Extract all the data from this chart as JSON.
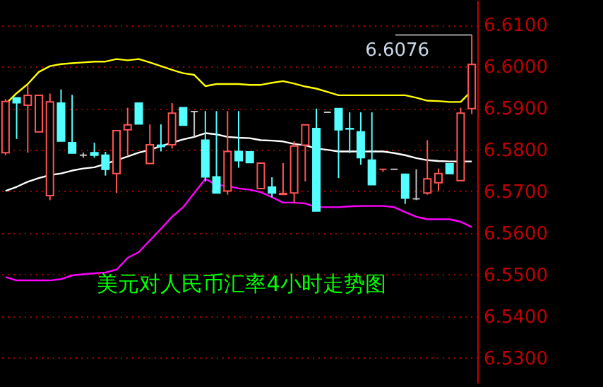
{
  "chart_data": {
    "type": "candlestick",
    "title": "美元对人民币汇率4小时走势图",
    "categories": [
      null,
      null,
      null,
      null,
      null,
      null,
      null,
      null,
      null,
      null,
      null,
      null,
      null,
      null,
      null,
      null,
      null,
      null,
      null,
      null,
      null,
      null,
      null,
      null,
      null,
      null,
      null,
      null,
      null,
      null,
      null,
      null,
      null,
      null,
      null,
      null,
      null,
      null,
      null,
      null,
      null,
      null,
      null
    ],
    "ohlc": [
      [
        6.5793,
        6.5922,
        6.5787,
        6.5916
      ],
      [
        6.5925,
        6.5925,
        6.5826,
        6.5913
      ],
      [
        6.5907,
        6.5956,
        6.5793,
        6.5931
      ],
      [
        6.5843,
        6.5931,
        6.5843,
        6.5931
      ],
      [
        6.569,
        6.5935,
        6.5679,
        6.5915
      ],
      [
        6.5912,
        6.5945,
        6.5821,
        6.5821
      ],
      [
        6.5817,
        6.5932,
        6.5792,
        6.5792
      ],
      [
        6.5787,
        6.5793,
        6.5781,
        6.5787
      ],
      [
        6.5793,
        6.5817,
        6.5781,
        6.5787
      ],
      [
        6.5787,
        6.5795,
        6.5738,
        6.5753
      ],
      [
        6.5743,
        6.5846,
        6.5696,
        6.5846
      ],
      [
        6.5848,
        6.5901,
        6.5787,
        6.586
      ],
      [
        6.5912,
        6.5912,
        6.5862,
        6.5862
      ],
      [
        6.5767,
        6.5861,
        6.5767,
        6.5812
      ],
      [
        6.5811,
        6.5861,
        6.5796,
        6.5808
      ],
      [
        6.5812,
        6.5912,
        6.5803,
        6.5888
      ],
      [
        6.5901,
        6.5901,
        6.5859,
        6.5859
      ],
      [
        6.5892,
        6.5892,
        6.5831,
        6.5892
      ],
      [
        6.5823,
        6.5893,
        6.5724,
        6.5735
      ],
      [
        6.5735,
        6.5893,
        6.5696,
        6.5696
      ],
      [
        6.5701,
        6.5893,
        6.5692,
        6.5796
      ],
      [
        6.5796,
        6.5893,
        6.5757,
        6.5774
      ],
      [
        6.5795,
        6.5795,
        6.5769,
        6.5769
      ],
      [
        6.5707,
        6.5768,
        6.5707,
        6.5768
      ],
      [
        6.571,
        6.5734,
        6.5686,
        6.5696
      ],
      [
        6.5693,
        6.5768,
        6.5691,
        6.5695
      ],
      [
        6.5696,
        6.582,
        6.5671,
        6.5809
      ],
      [
        6.5811,
        6.586,
        6.5724,
        6.586
      ],
      [
        6.5851,
        6.5899,
        6.5653,
        6.5653
      ],
      [
        6.589,
        6.589,
        6.589,
        6.589
      ],
      [
        6.5899,
        6.5899,
        6.5732,
        6.5848
      ],
      [
        6.5851,
        6.589,
        6.5792,
        6.585
      ],
      [
        6.5843,
        6.589,
        6.5764,
        6.5781
      ],
      [
        6.5775,
        6.589,
        6.5716,
        6.5716
      ],
      [
        6.5753,
        6.5753,
        6.5747,
        6.5753
      ],
      [
        6.5753,
        6.5753,
        6.5753,
        6.5753
      ],
      [
        6.5741,
        6.5741,
        6.567,
        6.5684
      ],
      [
        6.5682,
        6.5753,
        6.5679,
        6.5682
      ],
      [
        6.5696,
        6.5823,
        6.5692,
        6.573
      ],
      [
        6.5721,
        6.5755,
        6.5701,
        6.5743
      ],
      [
        6.5766,
        6.5766,
        6.5743,
        6.5743
      ],
      [
        6.5726,
        6.5901,
        6.5726,
        6.5888
      ],
      [
        6.5899,
        6.6076,
        6.5886,
        6.6005
      ]
    ],
    "colors": [
      "#ff5555",
      "#54ffff",
      "#ff5555",
      "#ff5555",
      "#ff5555",
      "#54ffff",
      "#54ffff",
      "#c0c0c0",
      "#54ffff",
      "#54ffff",
      "#ff5555",
      "#ff5555",
      "#54ffff",
      "#ff5555",
      "#54ffff",
      "#ff5555",
      "#54ffff",
      "#c0c0c0",
      "#54ffff",
      "#54ffff",
      "#ff5555",
      "#54ffff",
      "#54ffff",
      "#ff5555",
      "#54ffff",
      "#ff5555",
      "#ff5555",
      "#ff5555",
      "#54ffff",
      "#c0c0c0",
      "#54ffff",
      "#54ffff",
      "#54ffff",
      "#54ffff",
      "#ff5555",
      "#c0c0c0",
      "#54ffff",
      "#c0c0c0",
      "#ff5555",
      "#ff5555",
      "#54ffff",
      "#ff5555",
      "#ff5555"
    ],
    "series": [
      {
        "type": "line",
        "color": "#ffff00",
        "values": [
          6.591,
          6.5936,
          6.5958,
          6.5987,
          6.6001,
          6.6006,
          6.6008,
          6.601,
          6.6012,
          6.6012,
          6.6018,
          6.6015,
          6.6018,
          6.601,
          6.6001,
          6.5992,
          6.5984,
          6.598,
          6.5953,
          6.5958,
          6.5958,
          6.5958,
          6.5956,
          6.5956,
          6.5961,
          6.5965,
          6.5959,
          6.5952,
          6.5947,
          6.5939,
          6.5931,
          6.5931,
          6.5931,
          6.5931,
          6.5931,
          6.5931,
          6.5931,
          6.5925,
          6.5918,
          6.5917,
          6.5915,
          6.5915,
          6.5942
        ]
      },
      {
        "type": "line",
        "color": "#ffffff",
        "values": [
          6.5701,
          6.5711,
          6.5723,
          6.5732,
          6.5739,
          6.5743,
          6.575,
          6.5755,
          6.5758,
          6.5766,
          6.5775,
          6.5784,
          6.5793,
          6.58,
          6.5809,
          6.5817,
          6.5825,
          6.5831,
          6.584,
          6.5837,
          6.5831,
          6.5829,
          6.5828,
          6.5823,
          6.5822,
          6.582,
          6.5814,
          6.5811,
          6.5803,
          6.58,
          6.5796,
          6.5796,
          6.5796,
          6.5796,
          6.5796,
          6.5792,
          6.5787,
          6.578,
          6.5775,
          6.5773,
          6.5772,
          6.5772,
          6.5772
        ]
      },
      {
        "type": "line",
        "color": "#ff00ff",
        "values": [
          6.5494,
          6.5486,
          6.5486,
          6.5486,
          6.5486,
          6.5489,
          6.5498,
          6.5501,
          6.5503,
          6.5505,
          6.5512,
          6.554,
          6.5554,
          6.5582,
          6.561,
          6.5639,
          6.5662,
          6.5696,
          6.573,
          6.5716,
          6.5713,
          6.5707,
          6.5704,
          6.5698,
          6.5686,
          6.5673,
          6.5673,
          6.5671,
          6.5662,
          6.5662,
          6.5662,
          6.5664,
          6.5665,
          6.5665,
          6.5665,
          6.5662,
          6.565,
          6.5639,
          6.5633,
          6.5633,
          6.5633,
          6.5627,
          6.5614
        ]
      }
    ],
    "ylim": [
      6.524,
      6.616
    ],
    "yticks": [
      {
        "value": 6.61,
        "label": "6.6100"
      },
      {
        "value": 6.6,
        "label": "6.6000"
      },
      {
        "value": 6.59,
        "label": "6.5900"
      },
      {
        "value": 6.58,
        "label": "6.5800"
      },
      {
        "value": 6.57,
        "label": "6.5700"
      },
      {
        "value": 6.56,
        "label": "6.5600"
      },
      {
        "value": 6.55,
        "label": "6.5500"
      },
      {
        "value": 6.54,
        "label": "6.5400"
      },
      {
        "value": 6.53,
        "label": "6.5300"
      }
    ],
    "grid": "y",
    "annotations": [
      "6.6076"
    ]
  }
}
